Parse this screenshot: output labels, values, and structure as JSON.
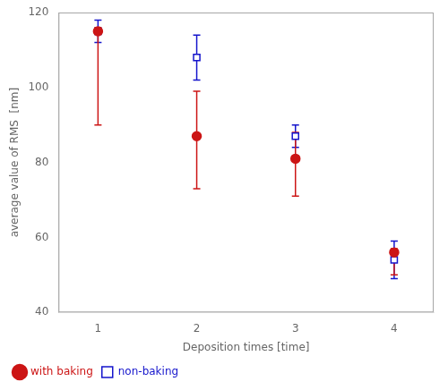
{
  "chart_data": {
    "type": "scatter",
    "xlabel": "Deposition times [time]",
    "ylabel": "average value of RMS  [nm]",
    "x": [
      1,
      2,
      3,
      4
    ],
    "series": [
      {
        "name": "non-baking",
        "color": "#1515CC",
        "marker": "square-open",
        "values": [
          115,
          108,
          87,
          54
        ],
        "yerr": [
          3,
          6,
          3,
          5
        ]
      },
      {
        "name": "with baking",
        "color": "#CC1515",
        "marker": "circle",
        "values": [
          115,
          87,
          81,
          56
        ],
        "yerr_lower": [
          25,
          14,
          10,
          6
        ],
        "yerr_upper": [
          1,
          12,
          7,
          1
        ]
      }
    ],
    "xlim": [
      0.6,
      4.4
    ],
    "ylim": [
      40,
      120
    ],
    "xticks": [
      1,
      2,
      3,
      4
    ],
    "yticks": [
      40,
      60,
      80,
      100,
      120
    ],
    "grid": false,
    "legend": "lower left"
  }
}
